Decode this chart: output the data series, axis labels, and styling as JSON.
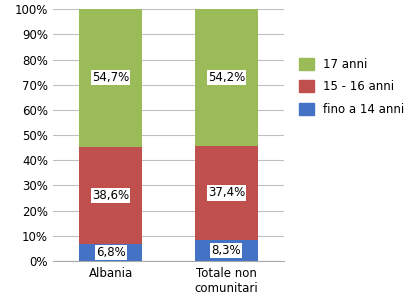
{
  "categories": [
    "Albania",
    "Totale non\ncomunitari"
  ],
  "series": [
    {
      "label": "fino a 14 anni",
      "values": [
        6.8,
        8.3
      ],
      "color": "#4472C4"
    },
    {
      "label": "15 - 16 anni",
      "values": [
        38.6,
        37.4
      ],
      "color": "#C0504D"
    },
    {
      "label": "17 anni",
      "values": [
        54.7,
        54.2
      ],
      "color": "#9BBB59"
    }
  ],
  "bar_labels": [
    [
      "6,8%",
      "38,6%",
      "54,7%"
    ],
    [
      "8,3%",
      "37,4%",
      "54,2%"
    ]
  ],
  "ylim": [
    0,
    100
  ],
  "yticks": [
    0,
    10,
    20,
    30,
    40,
    50,
    60,
    70,
    80,
    90,
    100
  ],
  "ytick_labels": [
    "0%",
    "10%",
    "20%",
    "30%",
    "40%",
    "50%",
    "60%",
    "70%",
    "80%",
    "90%",
    "100%"
  ],
  "background_color": "#FFFFFF",
  "bar_width": 0.55,
  "grid_color": "#C0C0C0",
  "label_fontsize": 8.5,
  "tick_fontsize": 8.5,
  "legend_fontsize": 8.5,
  "label_bg_color": "#FFFFFF",
  "x_positions": [
    0,
    1
  ],
  "figsize": [
    4.06,
    3.07
  ],
  "dpi": 100
}
